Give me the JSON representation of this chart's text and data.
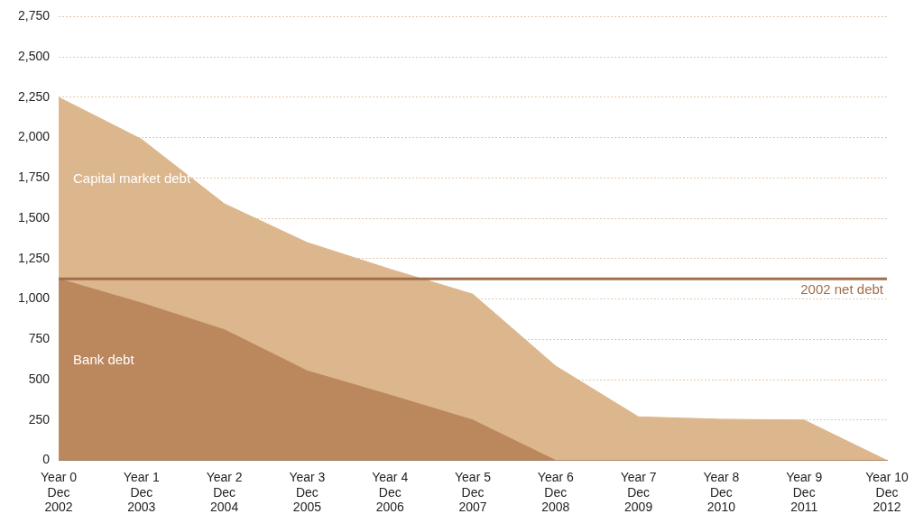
{
  "chart_data": {
    "type": "area",
    "stacked": true,
    "categories": [
      "Year 0\nDec\n2002",
      "Year 1\nDec\n2003",
      "Year 2\nDec\n2004",
      "Year 3\nDec\n2005",
      "Year 4\nDec\n2006",
      "Year 5\nDec\n2007",
      "Year 6\nDec\n2008",
      "Year 7\nDec\n2009",
      "Year 8\nDec\n2010",
      "Year 9\nDec\n2011",
      "Year 10\nDec\n2012"
    ],
    "series": [
      {
        "name": "Bank debt",
        "color": "#bb875c",
        "values": [
          1125,
          975,
          810,
          555,
          405,
          250,
          0,
          0,
          0,
          0,
          0
        ]
      },
      {
        "name": "Capital market debt",
        "color": "#dcb68c",
        "values": [
          1125,
          1015,
          780,
          795,
          780,
          780,
          585,
          270,
          255,
          250,
          0
        ]
      }
    ],
    "ylim": [
      0,
      2750
    ],
    "yticks": [
      {
        "value": 0,
        "label": "0"
      },
      {
        "value": 250,
        "label": "250"
      },
      {
        "value": 500,
        "label": "500"
      },
      {
        "value": 750,
        "label": "750"
      },
      {
        "value": 1000,
        "label": "1,000"
      },
      {
        "value": 1250,
        "label": "1,250"
      },
      {
        "value": 1500,
        "label": "1,500"
      },
      {
        "value": 1750,
        "label": "1,750"
      },
      {
        "value": 2000,
        "label": "2,000"
      },
      {
        "value": 2250,
        "label": "2,250"
      },
      {
        "value": 2500,
        "label": "2,500"
      },
      {
        "value": 2750,
        "label": "2,750"
      }
    ],
    "grid": "y",
    "legend": false,
    "ref_lines": [
      {
        "axis": "y",
        "value": 1125,
        "label": "2002 net debt",
        "color": "#a06e4c"
      }
    ]
  }
}
